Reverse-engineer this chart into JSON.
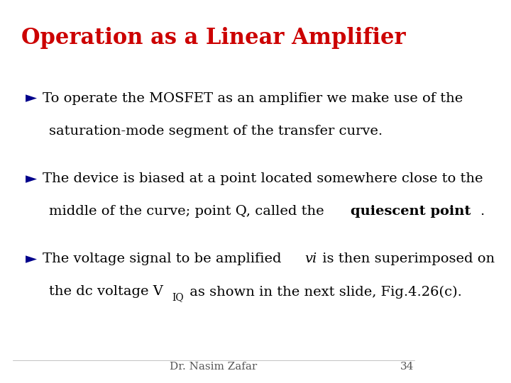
{
  "title": "Operation as a Linear Amplifier",
  "title_color": "#CC0000",
  "title_fontsize": 22,
  "background_color": "#FFFFFF",
  "bullet_color": "#00008B",
  "text_color": "#000000",
  "bullet_char": "►",
  "bullets": [
    {
      "line1": "To operate the MOSFET as an amplifier we make use of the",
      "line2": "saturation-mode segment of the transfer curve."
    },
    {
      "line1": "The device is biased at a point located somewhere close to the",
      "line2_normal": "middle of the curve; point Q, called the ",
      "line2_bold": "quiescent point",
      "line2_end": "."
    },
    {
      "line1_normal": "The voltage signal to be amplified ",
      "line1_italic": "vi",
      "line1_end": " is then superimposed on",
      "line2": "the dc voltage V",
      "line2_sub": "IQ",
      "line2_end": " as shown in the next slide, Fig.4.26(c)."
    }
  ],
  "footer_text": "Dr. Nasim Zafar",
  "footer_page": "34",
  "footer_color": "#555555",
  "footer_fontsize": 11
}
